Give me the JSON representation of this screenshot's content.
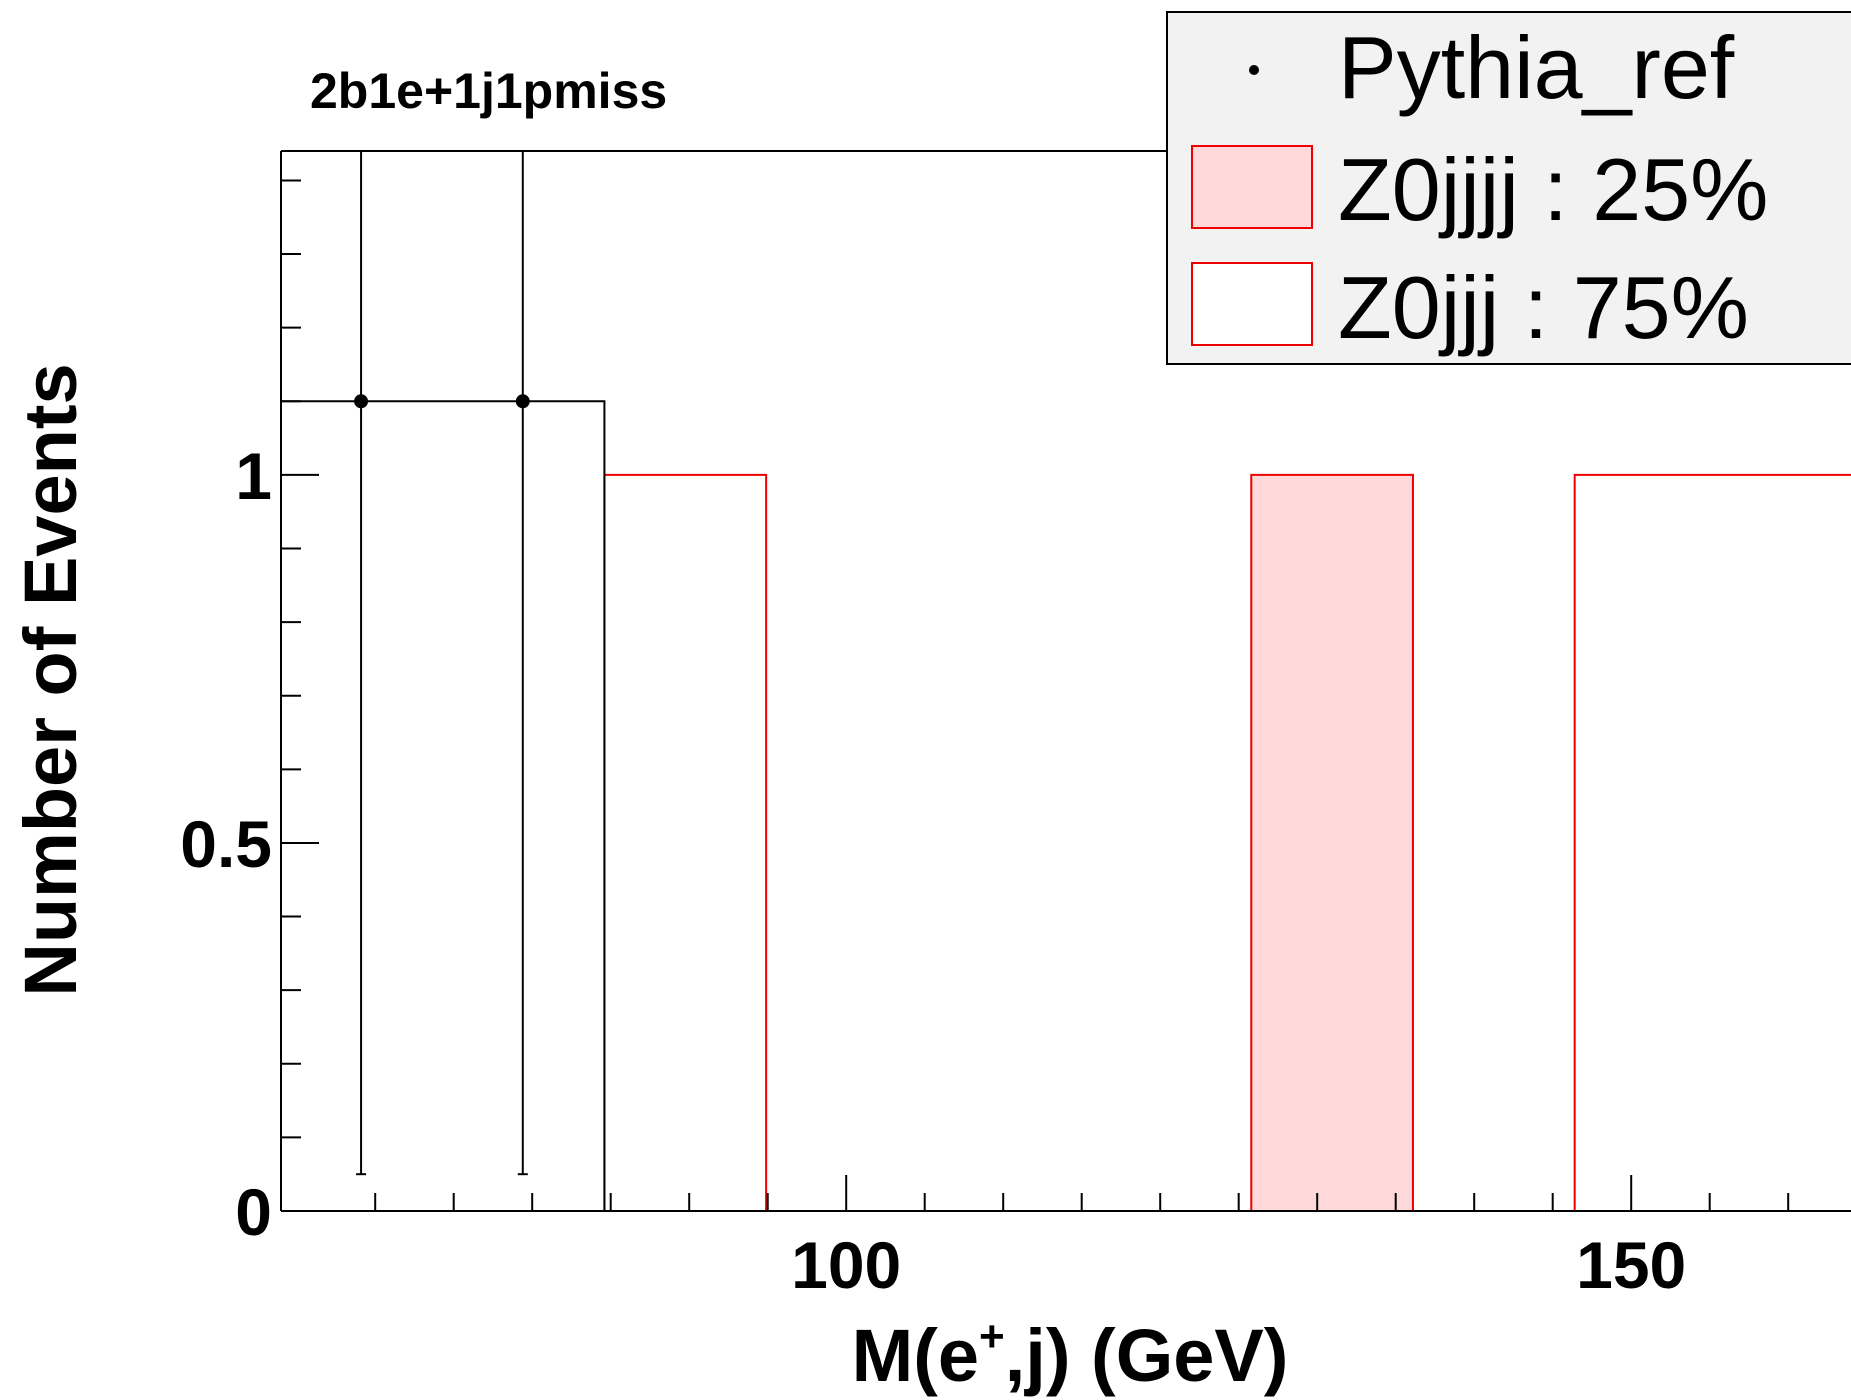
{
  "chart_data": {
    "type": "bar",
    "title": "2b1e+1j1pmiss",
    "xlabel": "M(e⁺,j) (GeV)",
    "xlabel_main": "M(e",
    "xlabel_sup": "+",
    "xlabel_rest": ",j) (GeV)",
    "ylabel": "Number of Events",
    "xlim": [
      64,
      164
    ],
    "ylim": [
      0,
      1.44
    ],
    "x_ticks": [
      100,
      150
    ],
    "x_tick_labels": [
      "100",
      "150"
    ],
    "y_ticks": [
      0,
      0.5,
      1
    ],
    "y_tick_labels": [
      "0",
      "0.5",
      "1"
    ],
    "bin_width": 10.3,
    "series": [
      {
        "name": "Pythia_ref",
        "kind": "points",
        "color": "#000000",
        "points": [
          {
            "x": 69.1,
            "y": 1.1,
            "err_low": 1.05,
            "err_high": 1.44
          },
          {
            "x": 79.4,
            "y": 1.1,
            "err_low": 1.05,
            "err_high": 1.44
          }
        ]
      },
      {
        "name": "Z0jjjj : 25%",
        "kind": "hist",
        "fill": "#ffd9da",
        "stroke": "#ee0000",
        "bins": [
          {
            "x_low": 125.8,
            "x_high": 136.1,
            "value": 1
          }
        ]
      },
      {
        "name": "Z0jjj : 75%",
        "kind": "hist",
        "fill": "#ffffff",
        "stroke": "#ee0000",
        "bins": [
          {
            "x_low": 84.6,
            "x_high": 94.9,
            "value": 1
          },
          {
            "x_low": 146.4,
            "x_high": 164,
            "value": 1
          }
        ]
      }
    ],
    "data_envelope": {
      "x_low": 64,
      "x_high": 84.6,
      "value": 1.1,
      "stroke": "#000000"
    },
    "legend": {
      "placement": "top-right",
      "entries": [
        "Pythia_ref",
        "Z0jjjj : 25%",
        "Z0jjj : 75%"
      ]
    }
  }
}
